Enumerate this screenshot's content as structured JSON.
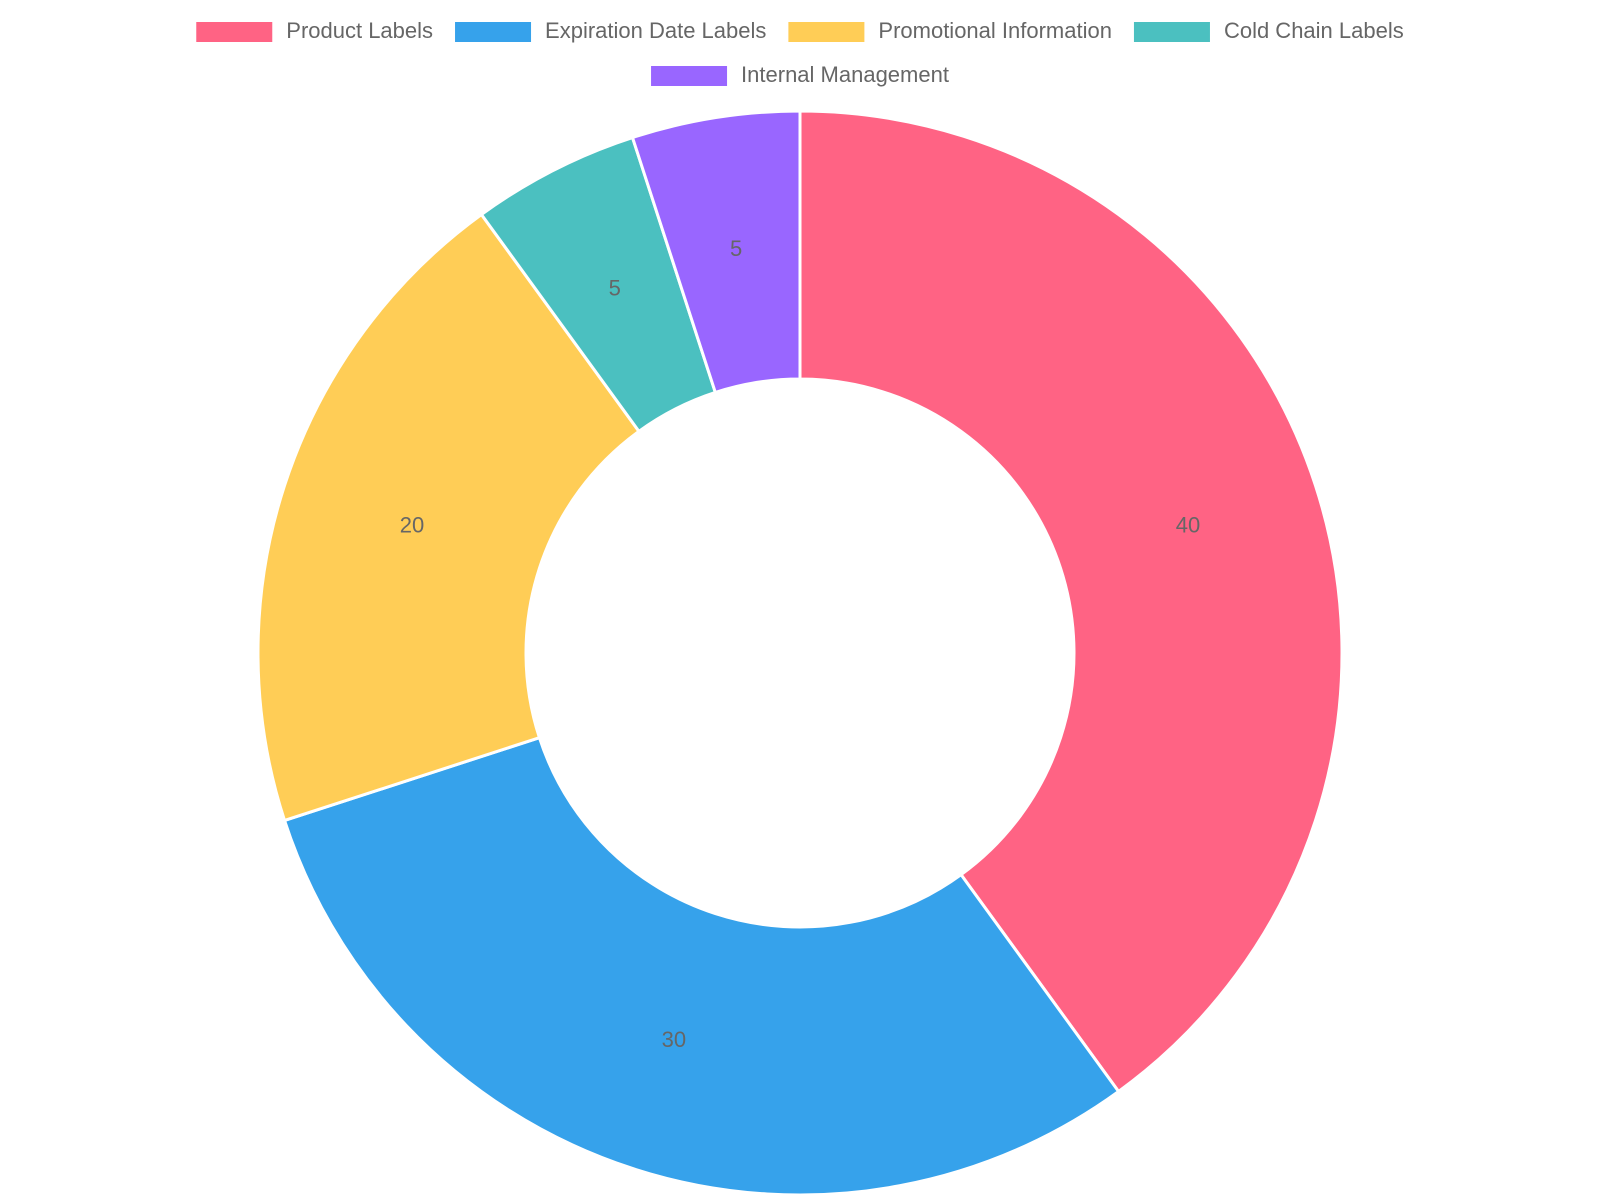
{
  "chart_data": {
    "type": "doughnut",
    "categories": [
      "Product Labels",
      "Expiration Date Labels",
      "Promotional Information",
      "Cold Chain Labels",
      "Internal Management"
    ],
    "values": [
      40,
      30,
      20,
      5,
      5
    ],
    "colors": [
      "#ff6384",
      "#36a2eb",
      "#ffcd56",
      "#4bc0c0",
      "#9966ff"
    ],
    "legend": "top"
  }
}
